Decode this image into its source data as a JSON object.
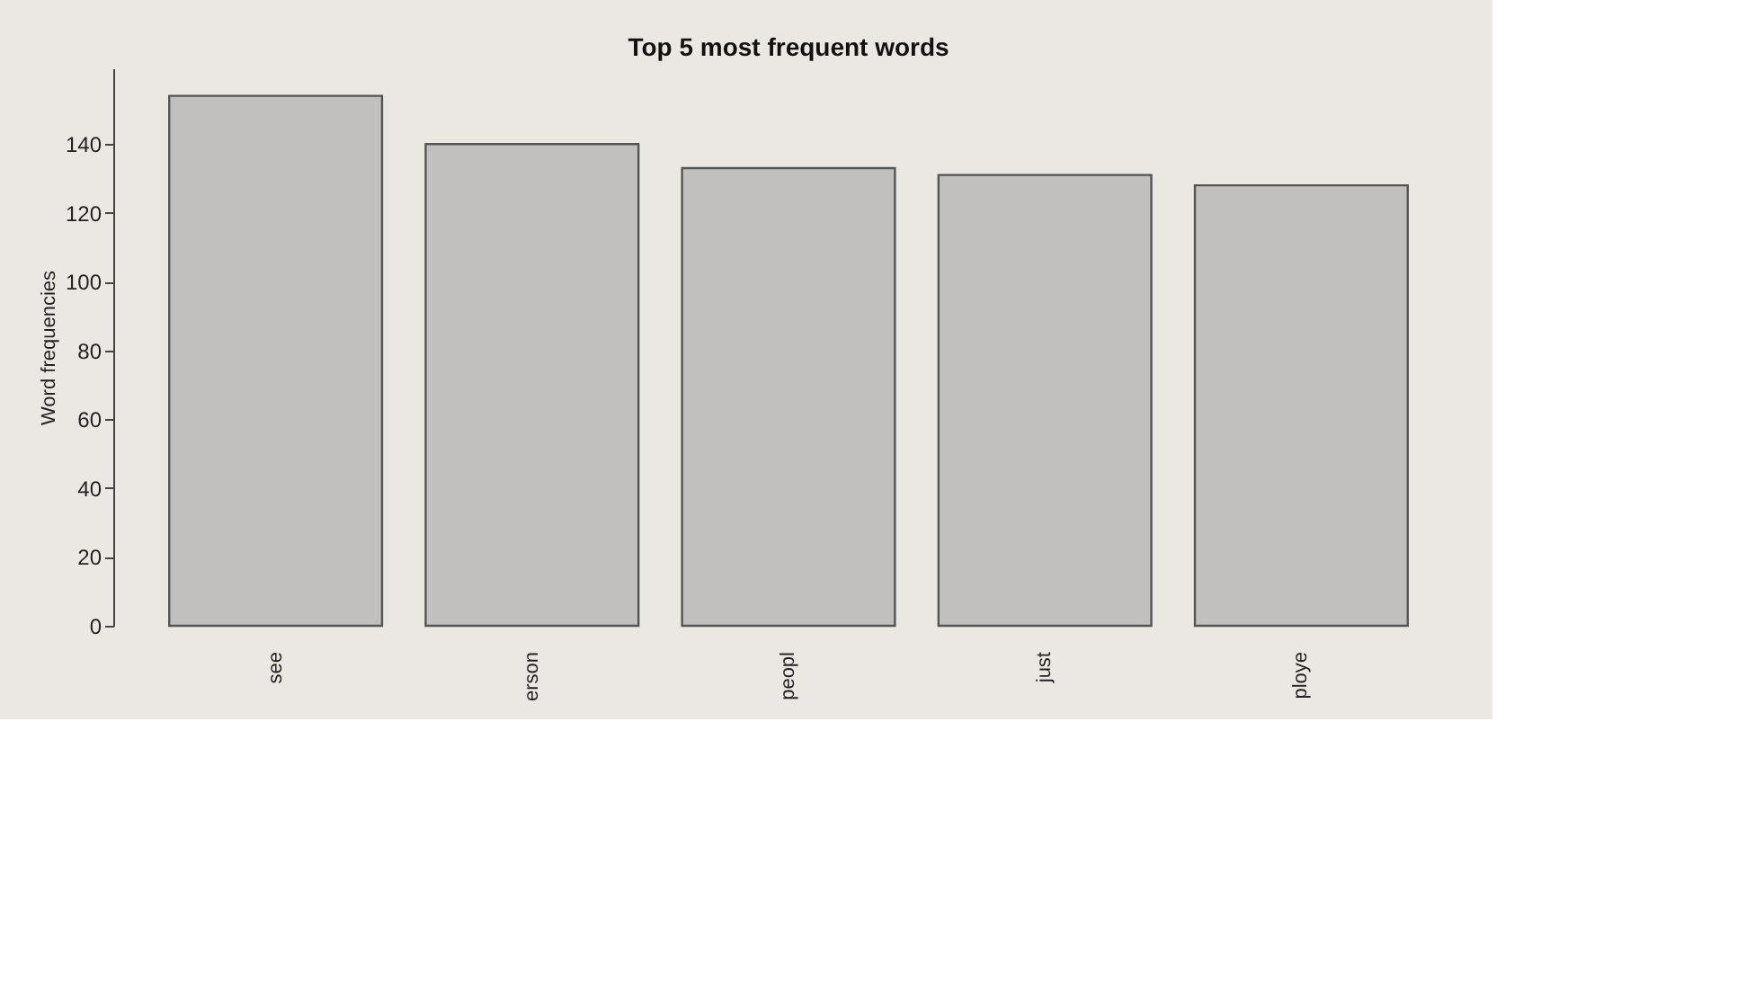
{
  "chart_data": {
    "type": "bar",
    "title": "Top 5 most frequent words",
    "ylabel": "Word frequencies",
    "categories": [
      "see",
      "erson",
      "peopl",
      "just",
      "ploye"
    ],
    "values": [
      154,
      140,
      133,
      131,
      128
    ],
    "color": "#c1c0be",
    "ylim": [
      0,
      162
    ],
    "yticks": [
      0,
      20,
      40,
      60,
      80,
      100,
      120,
      140
    ],
    "grid": false
  }
}
